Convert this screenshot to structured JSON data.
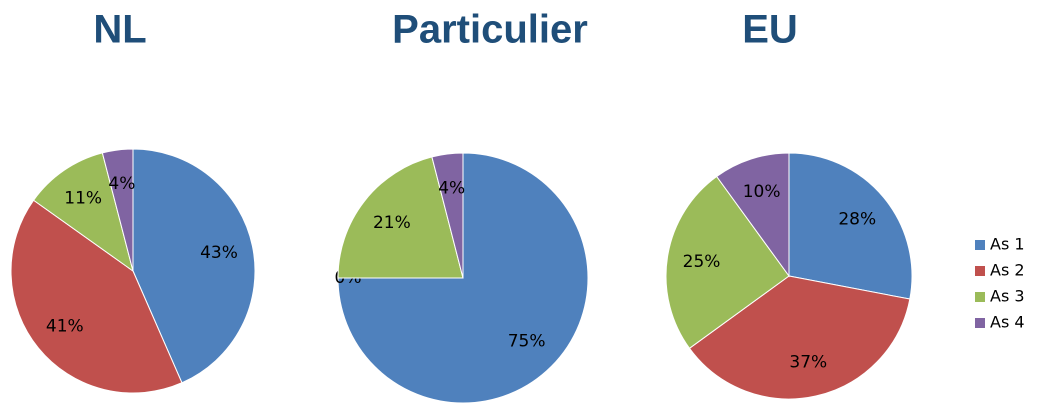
{
  "chart_data": [
    {
      "type": "pie",
      "title": "NL",
      "categories": [
        "As 1",
        "As 2",
        "As 3",
        "As 4"
      ],
      "values": [
        43,
        41,
        11,
        4
      ],
      "value_labels": [
        "43%",
        "41%",
        "11%",
        "4%"
      ],
      "colors": [
        "#4f81bd",
        "#c0504d",
        "#9bbb59",
        "#8064a2"
      ]
    },
    {
      "type": "pie",
      "title": "Particulier",
      "categories": [
        "As 1",
        "As 2",
        "As 3",
        "As 4"
      ],
      "values": [
        75,
        0,
        21,
        4
      ],
      "value_labels": [
        "75%",
        "0%",
        "21%",
        "4%"
      ],
      "colors": [
        "#4f81bd",
        "#c0504d",
        "#9bbb59",
        "#8064a2"
      ]
    },
    {
      "type": "pie",
      "title": "EU",
      "categories": [
        "As 1",
        "As 2",
        "As 3",
        "As 4"
      ],
      "values": [
        28,
        37,
        25,
        10
      ],
      "value_labels": [
        "28%",
        "37%",
        "25%",
        "10%"
      ],
      "colors": [
        "#4f81bd",
        "#c0504d",
        "#9bbb59",
        "#8064a2"
      ],
      "legend": "right"
    }
  ]
}
